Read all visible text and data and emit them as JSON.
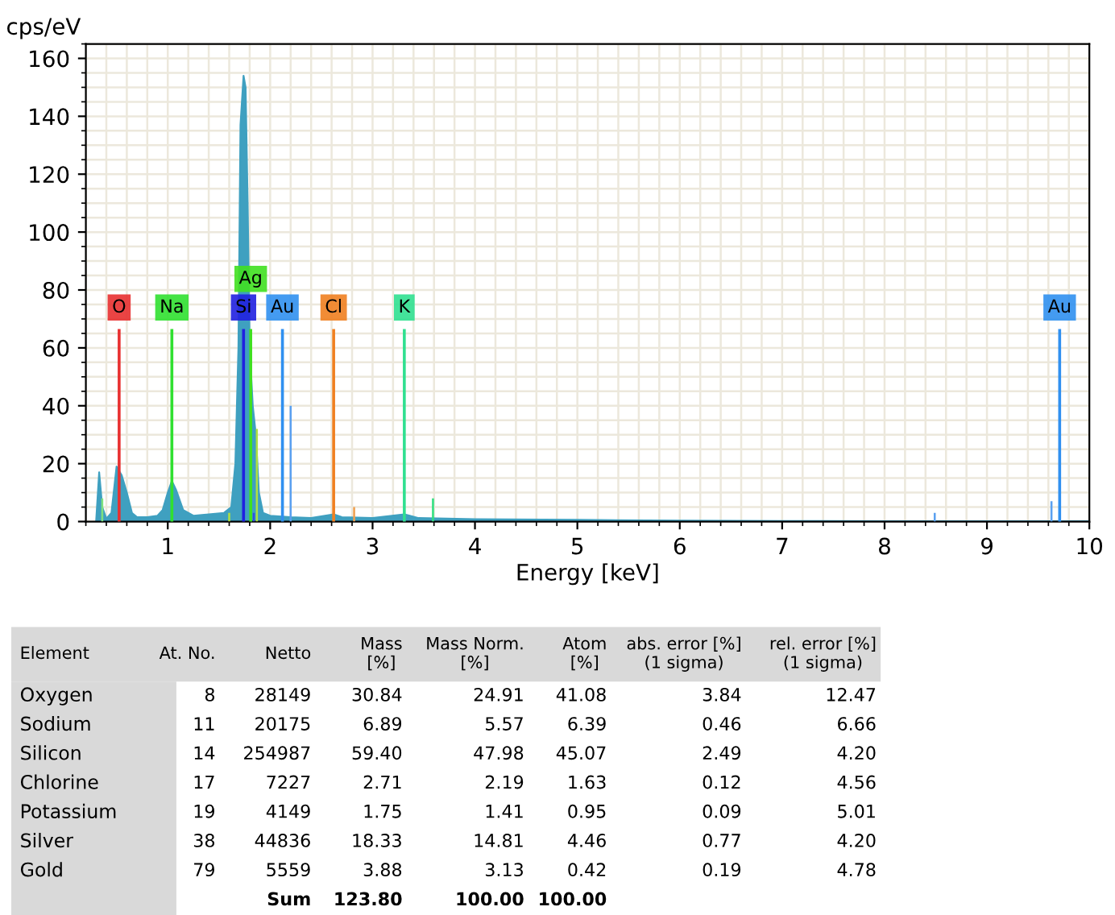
{
  "chart_data": [
    {
      "type": "area",
      "ylabel": "cps/eV",
      "xlabel": "Energy [keV]",
      "series": [
        {
          "type": "area",
          "color": "#3fa0c0",
          "x": [
            0.3,
            0.33,
            0.36,
            0.4,
            0.45,
            0.5,
            0.55,
            0.6,
            0.65,
            0.7,
            0.8,
            0.9,
            0.95,
            1.0,
            1.04,
            1.08,
            1.15,
            1.25,
            1.4,
            1.55,
            1.62,
            1.66,
            1.69,
            1.71,
            1.74,
            1.76,
            1.78,
            1.8,
            1.83,
            1.86,
            1.89,
            1.93,
            2.0,
            2.2,
            2.4,
            2.62,
            2.7,
            3.0,
            3.31,
            3.45,
            4.0,
            5.0,
            6.0,
            7.0,
            8.0,
            9.0,
            10.0
          ],
          "values": [
            0,
            17,
            5,
            1,
            3,
            19,
            16,
            10,
            3,
            1.5,
            1.5,
            2,
            4,
            10,
            14,
            11,
            4,
            2,
            2.5,
            3,
            5,
            20,
            60,
            137,
            154,
            150,
            110,
            60,
            40,
            30,
            10,
            3,
            2,
            1.5,
            1.2,
            2.5,
            1.5,
            1.2,
            2.5,
            1.2,
            0.8,
            0.6,
            0.3,
            0.2,
            0.1,
            0.1,
            0.1
          ]
        },
        {
          "type": "bar",
          "x": [
            0.36,
            1.6,
            1.84,
            1.87,
            2.2,
            2.82,
            3.59,
            8.49,
            9.63
          ],
          "values": [
            8,
            3,
            3,
            32,
            40,
            5,
            8,
            3,
            7
          ],
          "colors": [
            "#7ee07e",
            "#b0e040",
            "#3050e0",
            "#b0e040",
            "#5aa0f0",
            "#f0a050",
            "#30e080",
            "#5aa0f0",
            "#5aa0f0"
          ]
        }
      ],
      "ref_lines": [
        {
          "axis": "x",
          "value": 0.525,
          "label": "O",
          "color": "#e83030"
        },
        {
          "axis": "x",
          "value": 1.04,
          "label": "Na",
          "color": "#30e030"
        },
        {
          "axis": "x",
          "value": 1.74,
          "label": "Si",
          "color": "#2020e0"
        },
        {
          "axis": "x",
          "value": 1.81,
          "label": "Ag",
          "color": "#40e020"
        },
        {
          "axis": "x",
          "value": 2.12,
          "label": "Au",
          "color": "#3090f0"
        },
        {
          "axis": "x",
          "value": 2.62,
          "label": "Cl",
          "color": "#f08020"
        },
        {
          "axis": "x",
          "value": 3.31,
          "label": "K",
          "color": "#30e090"
        },
        {
          "axis": "x",
          "value": 9.71,
          "label": "Au",
          "color": "#3090f0"
        }
      ],
      "xlim": [
        0.2,
        10
      ],
      "xticks": [
        1,
        2,
        3,
        4,
        5,
        6,
        7,
        8,
        9,
        10
      ],
      "ylim": [
        0,
        165
      ],
      "yticks": [
        0,
        20,
        40,
        60,
        80,
        100,
        120,
        140,
        160
      ],
      "grid": true
    },
    {
      "type": "other",
      "categories": [
        "Element",
        "At. No.",
        "Netto",
        "Mass\n[%]",
        "Mass Norm.\n[%]",
        "Atom\n[%]",
        "abs. error [%]\n(1 sigma)",
        "rel. error [%]\n(1 sigma)"
      ],
      "y_categories": [
        "Oxygen",
        "Sodium",
        "Silicon",
        "Chlorine",
        "Potassium",
        "Silver",
        "Gold",
        null
      ],
      "cell_labels": [
        [
          "8",
          "28149",
          "30.84",
          "24.91",
          "41.08",
          "3.84",
          "12.47"
        ],
        [
          "11",
          "20175",
          "6.89",
          "5.57",
          "6.39",
          "0.46",
          "6.66"
        ],
        [
          "14",
          "254987",
          "59.40",
          "47.98",
          "45.07",
          "2.49",
          "4.20"
        ],
        [
          "17",
          "7227",
          "2.71",
          "2.19",
          "1.63",
          "0.12",
          "4.56"
        ],
        [
          "19",
          "4149",
          "1.75",
          "1.41",
          "0.95",
          "0.09",
          "5.01"
        ],
        [
          "38",
          "44836",
          "18.33",
          "14.81",
          "4.46",
          "0.77",
          "4.20"
        ],
        [
          "79",
          "5559",
          "3.88",
          "3.13",
          "0.42",
          "0.19",
          "4.78"
        ],
        [
          null,
          "Sum",
          "123.80",
          "100.00",
          "100.00",
          null,
          null
        ]
      ]
    }
  ]
}
